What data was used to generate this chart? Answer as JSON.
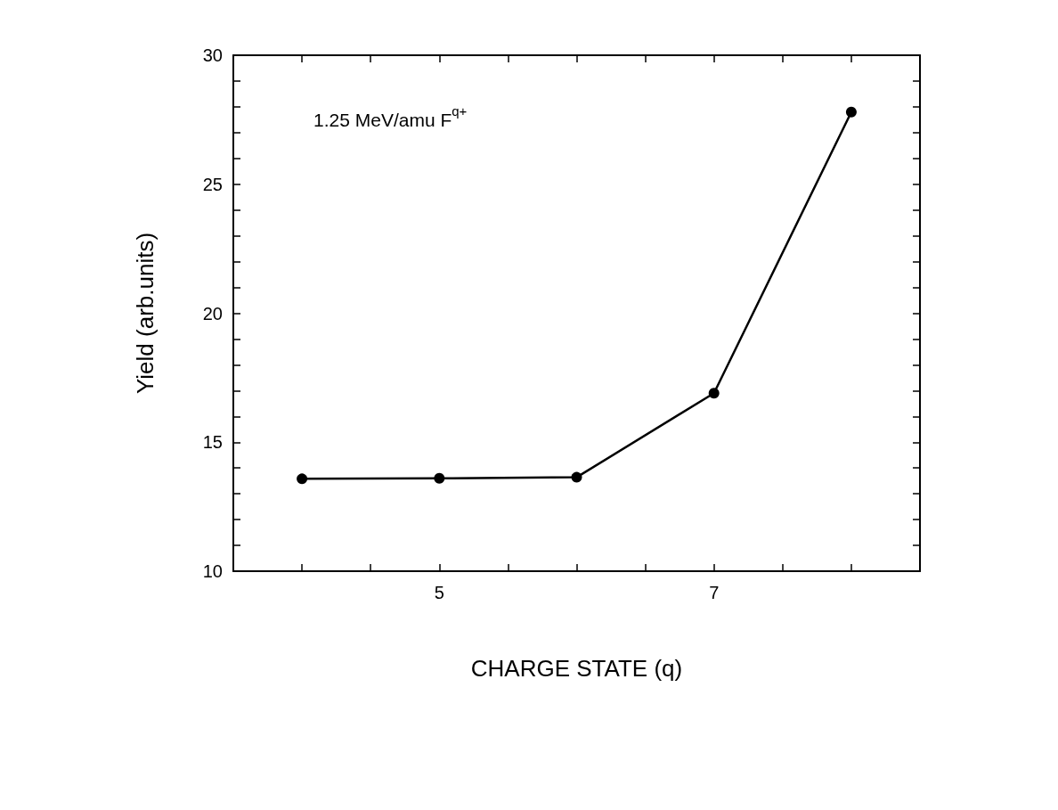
{
  "chart_data": {
    "type": "line",
    "xlabel": "CHARGE STATE (q)",
    "ylabel": "Yield (arb.units)",
    "annotations": [
      "1.25 MeV/amu F$^{q+}$"
    ],
    "x": [
      4,
      5,
      6,
      7,
      8
    ],
    "series": [
      {
        "color": "#000000",
        "values": [
          13.58,
          13.6,
          13.64,
          16.9,
          27.8
        ]
      }
    ],
    "xlim": [
      3.5,
      8.5
    ],
    "xticks": [
      {
        "value": 4,
        "label": null
      },
      {
        "value": 4.5,
        "label": null
      },
      5,
      {
        "value": 5.5,
        "label": null
      },
      {
        "value": 6,
        "label": null
      },
      {
        "value": 6.5,
        "label": null
      },
      7,
      {
        "value": 7.5,
        "label": null
      },
      {
        "value": 8,
        "label": null
      }
    ],
    "ylim": [
      10,
      30
    ],
    "yticks": [
      10,
      {
        "value": 11,
        "label": null
      },
      {
        "value": 12,
        "label": null
      },
      {
        "value": 13,
        "label": null
      },
      {
        "value": 14,
        "label": null
      },
      15,
      {
        "value": 16,
        "label": null
      },
      {
        "value": 17,
        "label": null
      },
      {
        "value": 18,
        "label": null
      },
      {
        "value": 19,
        "label": null
      },
      20,
      {
        "value": 21,
        "label": null
      },
      {
        "value": 22,
        "label": null
      },
      {
        "value": 23,
        "label": null
      },
      {
        "value": 24,
        "label": null
      },
      25,
      {
        "value": 26,
        "label": null
      },
      {
        "value": 27,
        "label": null
      },
      {
        "value": 28,
        "label": null
      },
      {
        "value": 29,
        "label": null
      },
      30
    ],
    "marker": "circle",
    "line_style": "solid"
  }
}
